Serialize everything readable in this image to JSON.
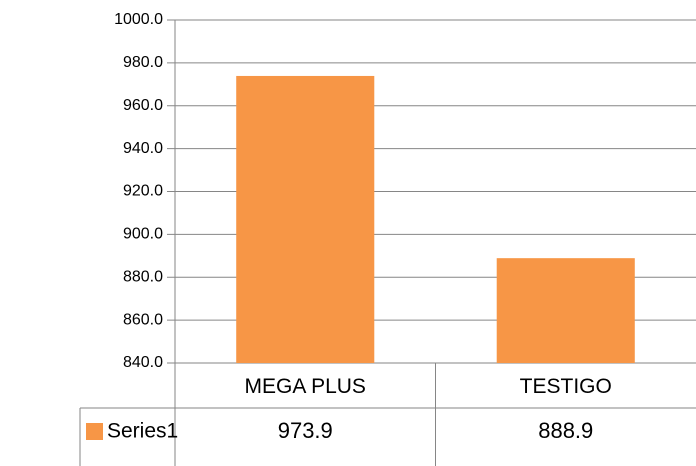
{
  "chart_data": {
    "type": "bar",
    "categories": [
      "MEGA PLUS",
      "TESTIGO"
    ],
    "series": [
      {
        "name": "Series1",
        "color": "#f79646",
        "values": [
          973.9,
          888.9
        ],
        "value_labels": [
          "973.9",
          "888.9"
        ]
      }
    ],
    "ylim": [
      840,
      1000
    ],
    "yticks": [
      {
        "value": 840,
        "label": "840.0"
      },
      {
        "value": 860,
        "label": "860.0"
      },
      {
        "value": 880,
        "label": "880.0"
      },
      {
        "value": 900,
        "label": "900.0"
      },
      {
        "value": 920,
        "label": "920.0"
      },
      {
        "value": 940,
        "label": "940.0"
      },
      {
        "value": 960,
        "label": "960.0"
      },
      {
        "value": 980,
        "label": "980.0"
      },
      {
        "value": 1000,
        "label": "1000.0"
      }
    ],
    "grid": true
  }
}
